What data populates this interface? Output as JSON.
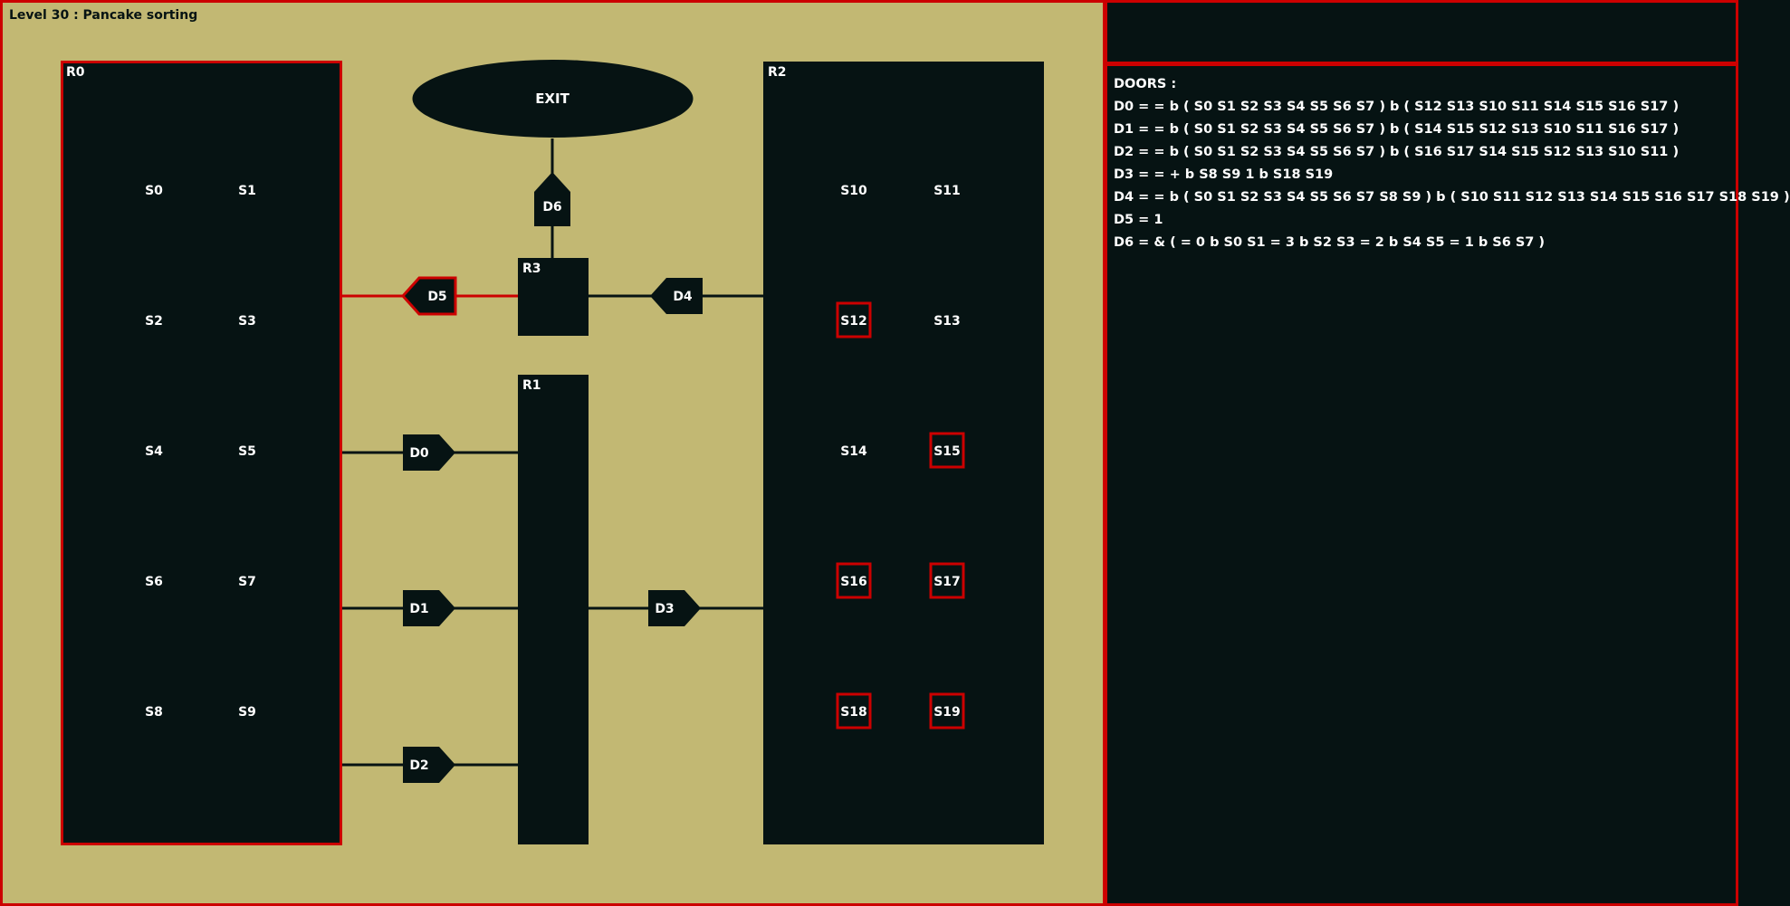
{
  "level_title": "Level 30 : Pancake sorting",
  "exit_label": "EXIT",
  "colors": {
    "board_bg": "#c2b873",
    "dark": "#061313",
    "highlight": "#cc0000",
    "text": "#ffffff"
  },
  "rooms": [
    {
      "id": "R0",
      "label": "R0",
      "highlighted": true
    },
    {
      "id": "R1",
      "label": "R1",
      "highlighted": false
    },
    {
      "id": "R2",
      "label": "R2",
      "highlighted": false
    },
    {
      "id": "R3",
      "label": "R3",
      "highlighted": false
    }
  ],
  "switches": [
    {
      "id": "S0",
      "label": "S0",
      "on": false
    },
    {
      "id": "S1",
      "label": "S1",
      "on": false
    },
    {
      "id": "S2",
      "label": "S2",
      "on": false
    },
    {
      "id": "S3",
      "label": "S3",
      "on": false
    },
    {
      "id": "S4",
      "label": "S4",
      "on": false
    },
    {
      "id": "S5",
      "label": "S5",
      "on": false
    },
    {
      "id": "S6",
      "label": "S6",
      "on": false
    },
    {
      "id": "S7",
      "label": "S7",
      "on": false
    },
    {
      "id": "S8",
      "label": "S8",
      "on": false
    },
    {
      "id": "S9",
      "label": "S9",
      "on": false
    },
    {
      "id": "S10",
      "label": "S10",
      "on": false
    },
    {
      "id": "S11",
      "label": "S11",
      "on": false
    },
    {
      "id": "S12",
      "label": "S12",
      "on": true
    },
    {
      "id": "S13",
      "label": "S13",
      "on": false
    },
    {
      "id": "S14",
      "label": "S14",
      "on": false
    },
    {
      "id": "S15",
      "label": "S15",
      "on": true
    },
    {
      "id": "S16",
      "label": "S16",
      "on": true
    },
    {
      "id": "S17",
      "label": "S17",
      "on": true
    },
    {
      "id": "S18",
      "label": "S18",
      "on": true
    },
    {
      "id": "S19",
      "label": "S19",
      "on": true
    }
  ],
  "doors": [
    {
      "id": "D0",
      "label": "D0",
      "open": false
    },
    {
      "id": "D1",
      "label": "D1",
      "open": false
    },
    {
      "id": "D2",
      "label": "D2",
      "open": false
    },
    {
      "id": "D3",
      "label": "D3",
      "open": false
    },
    {
      "id": "D4",
      "label": "D4",
      "open": false
    },
    {
      "id": "D5",
      "label": "D5",
      "open": true
    },
    {
      "id": "D6",
      "label": "D6",
      "open": false
    }
  ],
  "info": {
    "heading": "DOORS :",
    "lines": [
      "D0 = = b ( S0 S1 S2 S3 S4 S5 S6 S7 )  b ( S12 S13 S10 S11 S14 S15 S16 S17 )",
      "D1 = = b ( S0 S1 S2 S3 S4 S5 S6 S7 )  b ( S14 S15 S12 S13 S10 S11 S16 S17 )",
      "D2 = = b ( S0 S1 S2 S3 S4 S5 S6 S7 )  b ( S16 S17 S14 S15 S12 S13 S10 S11 )",
      "D3 = = + b S8 S9 1 b S18 S19",
      "D4 = = b ( S0 S1 S2 S3 S4 S5 S6 S7 S8 S9 )  b ( S10 S11 S12 S13 S14 S15 S16 S17 S18 S19 )",
      "D5 = 1",
      "D6 = & ( = 0 b S0 S1 = 3 b S2 S3 = 2 b S4 S5 = 1 b S6 S7 )"
    ]
  }
}
